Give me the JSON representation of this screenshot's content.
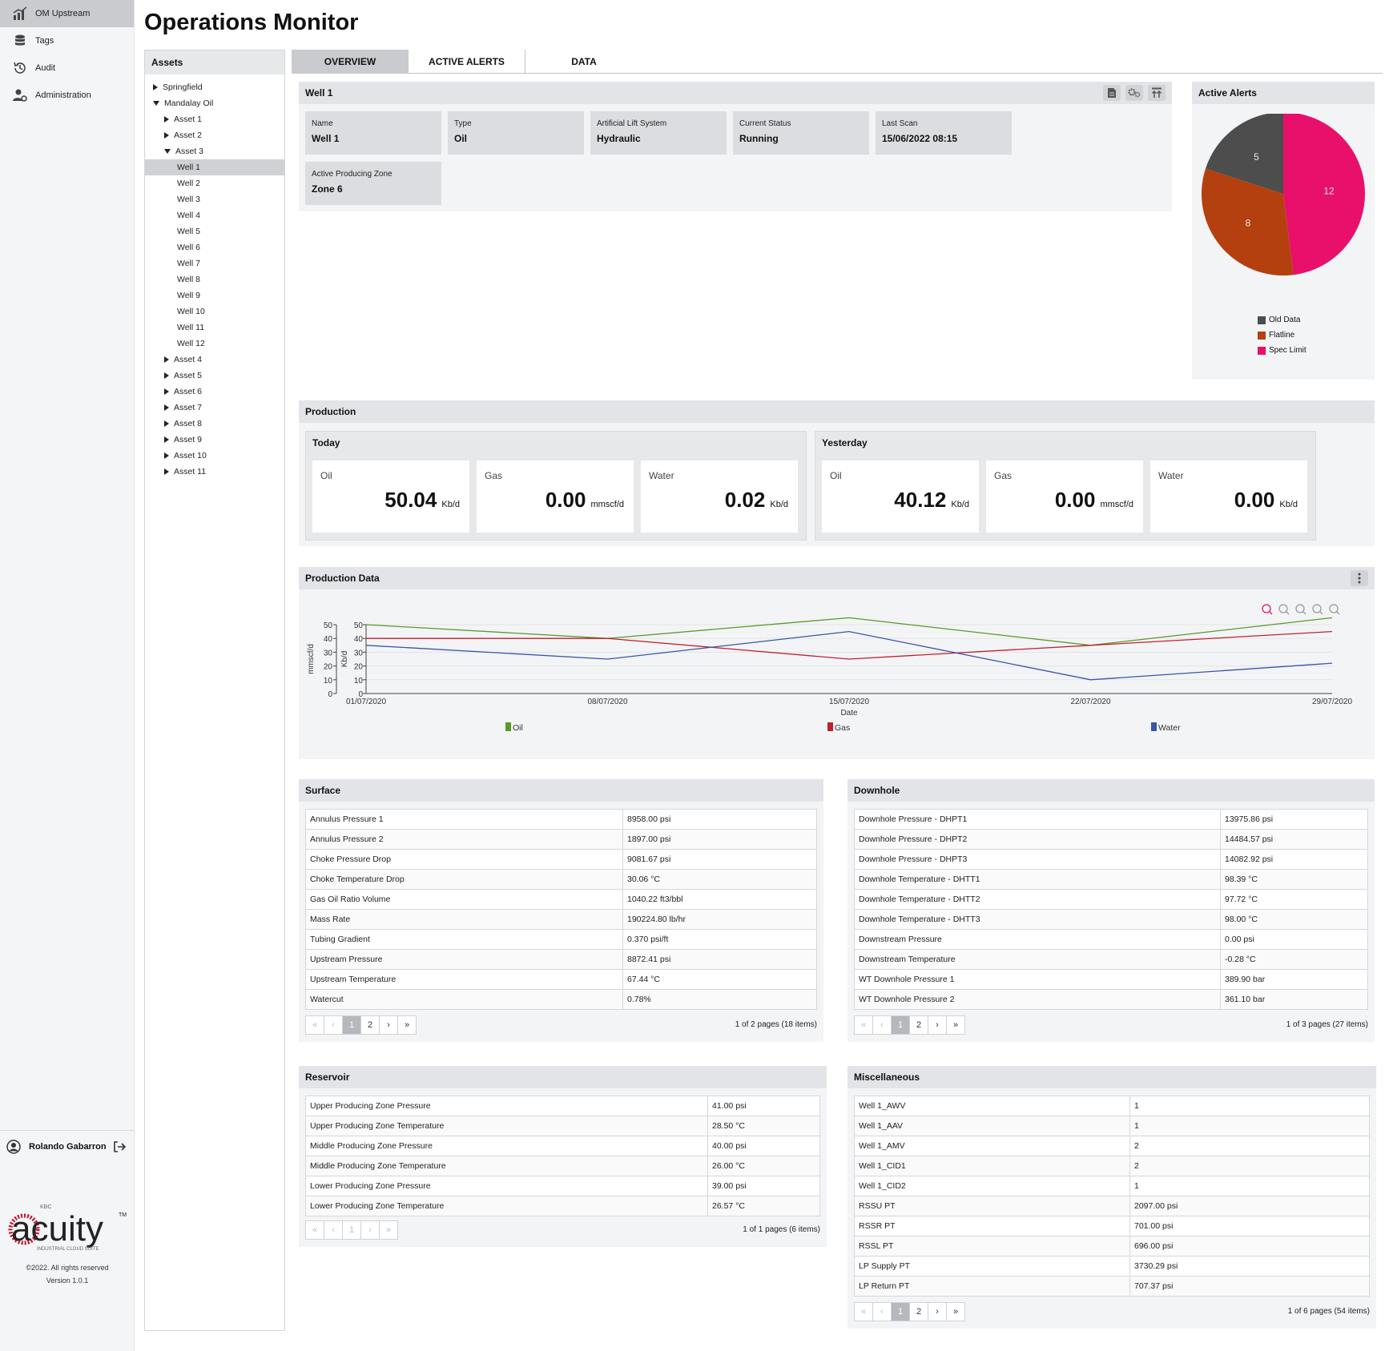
{
  "nav": {
    "items": [
      {
        "label": "OM Upstream",
        "icon": "chart-upstream-icon"
      },
      {
        "label": "Tags",
        "icon": "database-icon"
      },
      {
        "label": "Audit",
        "icon": "history-icon"
      },
      {
        "label": "Administration",
        "icon": "user-gear-icon"
      }
    ],
    "user_name": "Rolando Gabarron",
    "logo_text": "acuity",
    "logo_small_top": "KBC",
    "logo_small_bottom": "INDUSTRIAL CLOUD SUITE",
    "logo_tm": "TM",
    "copyright": "©2022. All rights reserved",
    "version": "Version 1.0.1"
  },
  "page_title": "Operations Monitor",
  "assets": {
    "title": "Assets",
    "tree": [
      {
        "label": "Springfield",
        "level": 0,
        "arrow": "right"
      },
      {
        "label": "Mandalay Oil",
        "level": 0,
        "arrow": "down"
      },
      {
        "label": "Asset 1",
        "level": 1,
        "arrow": "right"
      },
      {
        "label": "Asset 2",
        "level": 1,
        "arrow": "right"
      },
      {
        "label": "Asset 3",
        "level": 1,
        "arrow": "down"
      },
      {
        "label": "Well 1",
        "level": 2,
        "arrow": "",
        "selected": true
      },
      {
        "label": "Well 2",
        "level": 2,
        "arrow": ""
      },
      {
        "label": "Well 3",
        "level": 2,
        "arrow": ""
      },
      {
        "label": "Well 4",
        "level": 2,
        "arrow": ""
      },
      {
        "label": "Well 5",
        "level": 2,
        "arrow": ""
      },
      {
        "label": "Well 6",
        "level": 2,
        "arrow": ""
      },
      {
        "label": "Well 7",
        "level": 2,
        "arrow": ""
      },
      {
        "label": "Well 8",
        "level": 2,
        "arrow": ""
      },
      {
        "label": "Well 9",
        "level": 2,
        "arrow": ""
      },
      {
        "label": "Well 10",
        "level": 2,
        "arrow": ""
      },
      {
        "label": "Well 11",
        "level": 2,
        "arrow": ""
      },
      {
        "label": "Well 12",
        "level": 2,
        "arrow": ""
      },
      {
        "label": "Asset 4",
        "level": 1,
        "arrow": "right"
      },
      {
        "label": "Asset 5",
        "level": 1,
        "arrow": "right"
      },
      {
        "label": "Asset 6",
        "level": 1,
        "arrow": "right"
      },
      {
        "label": "Asset 7",
        "level": 1,
        "arrow": "right"
      },
      {
        "label": "Asset 8",
        "level": 1,
        "arrow": "right"
      },
      {
        "label": "Asset 9",
        "level": 1,
        "arrow": "right"
      },
      {
        "label": "Asset 10",
        "level": 1,
        "arrow": "right"
      },
      {
        "label": "Asset 11",
        "level": 1,
        "arrow": "right"
      }
    ]
  },
  "tabs": [
    "OVERVIEW",
    "ACTIVE ALERTS",
    "DATA"
  ],
  "well": {
    "title": "Well 1",
    "fields": [
      {
        "label": "Name",
        "value": "Well 1"
      },
      {
        "label": "Type",
        "value": "Oil"
      },
      {
        "label": "Artificial Lift System",
        "value": "Hydraulic"
      },
      {
        "label": "Current Status",
        "value": "Running"
      },
      {
        "label": "Last Scan",
        "value": "15/06/2022  08:15"
      },
      {
        "label": "Active Producing Zone",
        "value": "Zone 6"
      }
    ]
  },
  "alerts": {
    "title": "Active Alerts",
    "slices": [
      {
        "name": "Old Data",
        "value": 5,
        "color": "#4d4d4d"
      },
      {
        "name": "Flatline",
        "value": 8,
        "color": "#b5400f"
      },
      {
        "name": "Spec Limit",
        "value": 12,
        "color": "#e8106b"
      }
    ]
  },
  "production": {
    "title": "Production",
    "today": {
      "title": "Today",
      "metrics": [
        {
          "label": "Oil",
          "value": "50.04",
          "unit": "Kb/d"
        },
        {
          "label": "Gas",
          "value": "0.00",
          "unit": "mmscf/d"
        },
        {
          "label": "Water",
          "value": "0.02",
          "unit": "Kb/d"
        }
      ]
    },
    "yesterday": {
      "title": "Yesterday",
      "metrics": [
        {
          "label": "Oil",
          "value": "40.12",
          "unit": "Kb/d"
        },
        {
          "label": "Gas",
          "value": "0.00",
          "unit": "mmscf/d"
        },
        {
          "label": "Water",
          "value": "0.00",
          "unit": "Kb/d"
        }
      ]
    }
  },
  "production_data": {
    "title": "Production Data"
  },
  "chart_data": {
    "type": "line",
    "x": [
      "01/07/2020",
      "08/07/2020",
      "15/07/2020",
      "22/07/2020",
      "29/07/2020"
    ],
    "xlabel": "Date",
    "ylabel_left": "mmscf/d",
    "ylabel_right": "Kb/d",
    "ylim": [
      0,
      50
    ],
    "yticks": [
      0,
      10,
      20,
      30,
      40,
      50
    ],
    "series": [
      {
        "name": "Oil",
        "color": "#5a9a2a",
        "values": [
          50,
          40,
          55,
          35,
          55
        ]
      },
      {
        "name": "Gas",
        "color": "#c0212d",
        "values": [
          40,
          40,
          25,
          35,
          45
        ]
      },
      {
        "name": "Water",
        "color": "#3a55a8",
        "values": [
          35,
          25,
          45,
          10,
          22
        ]
      }
    ],
    "legend": "bottom"
  },
  "surface": {
    "title": "Surface",
    "rows": [
      [
        "Annulus Pressure 1",
        "8958.00 psi"
      ],
      [
        "Annulus Pressure 2",
        "1897.00 psi"
      ],
      [
        "Choke Pressure Drop",
        "9081.67 psi"
      ],
      [
        "Choke Temperature Drop",
        "30.06 °C"
      ],
      [
        "Gas Oil Ratio Volume",
        "1040.22 ft3/bbl"
      ],
      [
        "Mass Rate",
        "190224.80 lb/hr"
      ],
      [
        "Tubing Gradient",
        "0.370 psi/ft"
      ],
      [
        "Upstream Pressure",
        "8872.41 psi"
      ],
      [
        "Upstream Temperature",
        "67.44 °C"
      ],
      [
        "Watercut",
        "0.78%"
      ]
    ],
    "pager": {
      "pages": [
        "1",
        "2"
      ],
      "info": "1 of 2 pages (18 items)"
    }
  },
  "downhole": {
    "title": "Downhole",
    "rows": [
      [
        "Downhole Pressure - DHPT1",
        "13975.86 psi"
      ],
      [
        "Downhole Pressure - DHPT2",
        "14484.57 psi"
      ],
      [
        "Downhole Pressure - DHPT3",
        "14082.92 psi"
      ],
      [
        "Downhole Temperature - DHTT1",
        "98.39 °C"
      ],
      [
        "Downhole Temperature - DHTT2",
        "97.72 °C"
      ],
      [
        "Downhole Temperature - DHTT3",
        "98.00 °C"
      ],
      [
        "Downstream Pressure",
        "0.00 psi"
      ],
      [
        "Downstream Temperature",
        "-0.28 °C"
      ],
      [
        "WT Downhole Pressure 1",
        "389.90 bar"
      ],
      [
        "WT Downhole Pressure 2",
        "361.10 bar"
      ]
    ],
    "pager": {
      "pages": [
        "1",
        "2"
      ],
      "info": "1 of 3 pages (27 items)"
    }
  },
  "reservoir": {
    "title": "Reservoir",
    "rows": [
      [
        "Upper Producing Zone Pressure",
        "41.00 psi"
      ],
      [
        "Upper Producing Zone Temperature",
        "28.50 °C"
      ],
      [
        "Middle Producing Zone Pressure",
        "40.00 psi"
      ],
      [
        "Middle Producing Zone Temperature",
        "26.00 °C"
      ],
      [
        "Lower Producing Zone Pressure",
        "39.00 psi"
      ],
      [
        "Lower Producing Zone Temperature",
        "26.57 °C"
      ]
    ],
    "pager": {
      "pages": [
        "1"
      ],
      "info": "1 of 1 pages (6 items)"
    }
  },
  "misc": {
    "title": "Miscellaneous",
    "rows": [
      [
        "Well 1_AWV",
        "1"
      ],
      [
        "Well 1_AAV",
        "1"
      ],
      [
        "Well 1_AMV",
        "2"
      ],
      [
        "Well 1_CID1",
        "2"
      ],
      [
        "Well 1_CID2",
        "1"
      ],
      [
        "RSSU PT",
        "2097.00 psi"
      ],
      [
        "RSSR PT",
        "701.00 psi"
      ],
      [
        "RSSL PT",
        "696.00 psi"
      ],
      [
        "LP Supply PT",
        "3730.29 psi"
      ],
      [
        "LP Return PT",
        "707.37 psi"
      ]
    ],
    "pager": {
      "pages": [
        "1",
        "2"
      ],
      "info": "1 of 6 pages (54 items)"
    }
  }
}
